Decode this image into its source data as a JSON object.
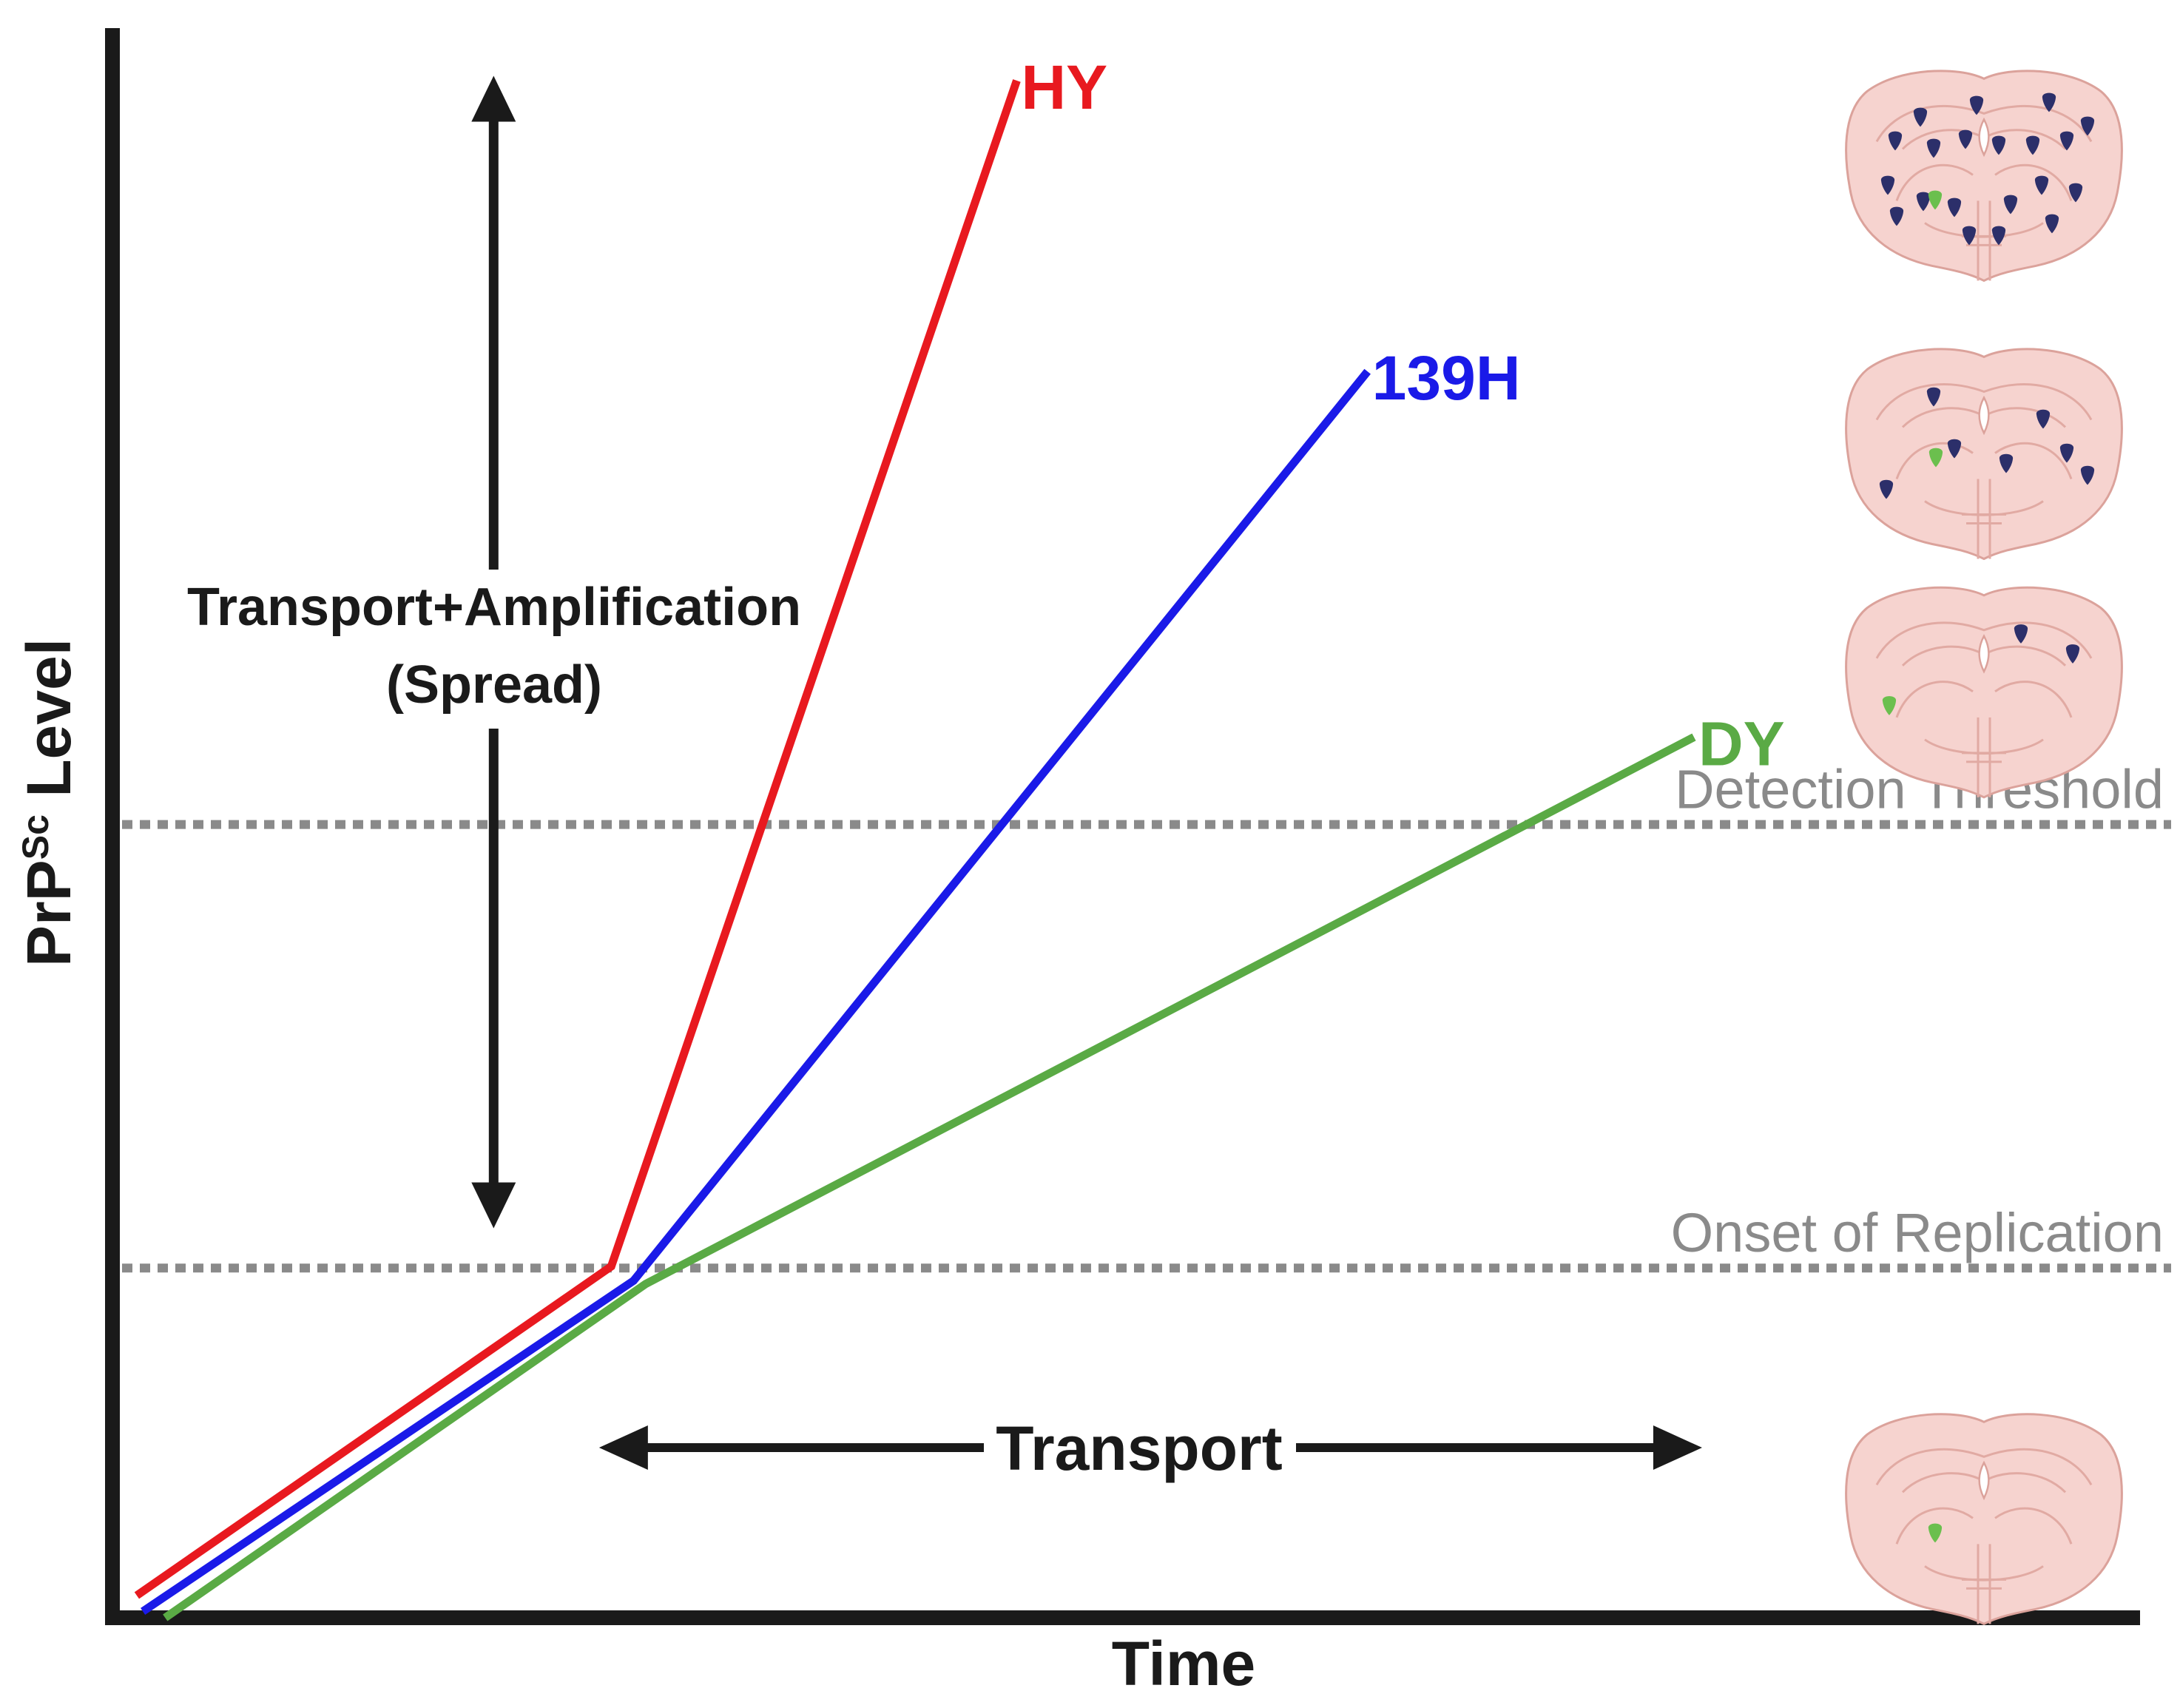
{
  "chart_data": {
    "type": "line",
    "title": "",
    "xlabel": "Time",
    "ylabel": "PrP",
    "ylabel_superscript": "Sc",
    "ylabel_suffix": " Level",
    "xlim": [
      0,
      100
    ],
    "ylim": [
      0,
      100
    ],
    "series": [
      {
        "name": "HY",
        "color": "#e8191f",
        "x": [
          1.2,
          24.6,
          44.6
        ],
        "y": [
          1.4,
          22.1,
          96.7
        ]
      },
      {
        "name": "139H",
        "color": "#1a1ae8",
        "x": [
          1.5,
          25.7,
          61.9
        ],
        "y": [
          0.4,
          21.2,
          78.4
        ]
      },
      {
        "name": "DY",
        "color": "#5aaa45",
        "x": [
          2.6,
          26.3,
          78.0
        ],
        "y": [
          0.0,
          21.0,
          55.4
        ]
      }
    ],
    "reference_lines": [
      {
        "label": "Detection Threshold",
        "y": 49.9,
        "color": "#8a8a8a"
      },
      {
        "label": "Onset of Replication",
        "y": 22.0,
        "color": "#8a8a8a"
      }
    ],
    "annotations": [
      {
        "label_line1": "Transport+Amplification",
        "label_line2": "(Spread)",
        "direction": "vertical",
        "x": 18.8,
        "from_y": 24.5,
        "to_y": 97.0
      },
      {
        "label": "Transport",
        "direction": "horizontal",
        "y": 10.7,
        "from_x": 24.0,
        "to_x": 78.4
      }
    ],
    "brain_icons": [
      {
        "name": "brain-section-high",
        "ref_y": 91.0,
        "dark_dots": 20,
        "green_dots": 1
      },
      {
        "name": "brain-section-medium",
        "ref_y": 73.5,
        "dark_dots": 7,
        "green_dots": 1
      },
      {
        "name": "brain-section-low",
        "ref_y": 58.5,
        "dark_dots": 2,
        "green_dots": 1
      },
      {
        "name": "brain-section-baseline",
        "ref_y": 6.5,
        "dark_dots": 0,
        "green_dots": 1
      }
    ],
    "colors": {
      "axis": "#1a1a1a",
      "arrow": "#1a1a1a",
      "brain_fill": "#f6d3cf",
      "brain_stroke": "#dba29b",
      "dot_dark": "#2c2f6a",
      "dot_green": "#6bbf4e"
    }
  }
}
